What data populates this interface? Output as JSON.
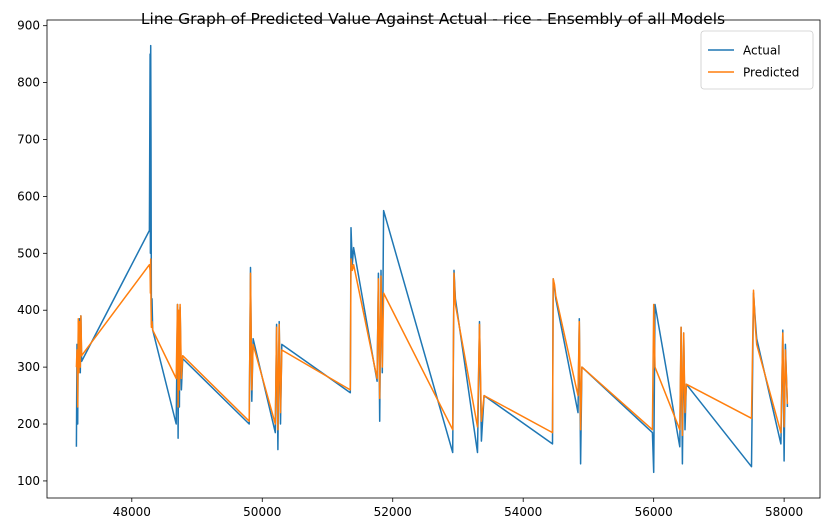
{
  "chart_data": {
    "type": "line",
    "title": "Line Graph of Predicted Value Against Actual - rice  - Ensembly of all Models",
    "xlabel": "",
    "ylabel": "",
    "xlim": [
      46700,
      58550
    ],
    "ylim": [
      70,
      910
    ],
    "x_ticks": [
      48000,
      50000,
      52000,
      54000,
      56000,
      58000
    ],
    "y_ticks": [
      100,
      200,
      300,
      400,
      500,
      600,
      700,
      800,
      900
    ],
    "grid": false,
    "legend_position": "top-right",
    "series": [
      {
        "name": "Actual",
        "color": "#1f77b4",
        "x": [
          47150,
          47160,
          47170,
          47180,
          47190,
          47200,
          47210,
          47220,
          47230,
          48270,
          48280,
          48285,
          48290,
          48295,
          48300,
          48310,
          48320,
          48680,
          48700,
          48710,
          48720,
          48730,
          48740,
          48760,
          48780,
          49800,
          49820,
          49840,
          49860,
          50200,
          50220,
          50240,
          50260,
          50280,
          50300,
          51350,
          51360,
          51380,
          51400,
          51760,
          51780,
          51800,
          51820,
          51840,
          51860,
          52920,
          52940,
          52960,
          53300,
          53330,
          53360,
          53400,
          54450,
          54460,
          54480,
          54500,
          54840,
          54860,
          54880,
          54900,
          55980,
          56000,
          56020,
          56400,
          56420,
          56440,
          56460,
          56480,
          56500,
          57500,
          57530,
          57560,
          57580,
          57950,
          57980,
          58000,
          58020,
          58050
        ],
        "y": [
          160,
          340,
          200,
          380,
          300,
          385,
          290,
          390,
          310,
          540,
          850,
          500,
          865,
          700,
          375,
          420,
          365,
          200,
          410,
          175,
          395,
          230,
          405,
          260,
          315,
          200,
          475,
          240,
          350,
          185,
          375,
          155,
          380,
          200,
          340,
          255,
          545,
          480,
          510,
          275,
          465,
          205,
          470,
          290,
          575,
          150,
          470,
          420,
          150,
          380,
          170,
          250,
          165,
          455,
          440,
          420,
          220,
          385,
          130,
          300,
          185,
          115,
          410,
          160,
          370,
          130,
          360,
          190,
          270,
          125,
          430,
          380,
          350,
          165,
          365,
          135,
          340,
          230
        ]
      },
      {
        "name": "Predicted",
        "color": "#ff7f0e",
        "x": [
          47150,
          47160,
          47170,
          47180,
          47190,
          47200,
          47210,
          47220,
          47230,
          48270,
          48280,
          48285,
          48290,
          48295,
          48300,
          48310,
          48320,
          48680,
          48700,
          48710,
          48720,
          48730,
          48740,
          48760,
          48780,
          49800,
          49820,
          49840,
          49860,
          50200,
          50220,
          50240,
          50260,
          50280,
          50300,
          51350,
          51360,
          51380,
          51400,
          51760,
          51780,
          51800,
          51820,
          51840,
          51860,
          52920,
          52940,
          52960,
          53300,
          53330,
          53360,
          53400,
          54450,
          54460,
          54480,
          54500,
          54840,
          54860,
          54880,
          54900,
          55980,
          56000,
          56020,
          56400,
          56420,
          56440,
          56460,
          56480,
          56500,
          57500,
          57530,
          57560,
          57580,
          57950,
          57980,
          58000,
          58020,
          58050
        ],
        "y": [
          300,
          330,
          230,
          385,
          290,
          380,
          300,
          390,
          320,
          480,
          470,
          430,
          490,
          410,
          370,
          380,
          365,
          280,
          410,
          230,
          400,
          260,
          410,
          280,
          320,
          205,
          465,
          260,
          340,
          200,
          370,
          190,
          375,
          220,
          330,
          260,
          490,
          470,
          480,
          280,
          455,
          245,
          460,
          300,
          430,
          190,
          465,
          410,
          195,
          375,
          205,
          250,
          185,
          455,
          445,
          425,
          250,
          380,
          190,
          300,
          190,
          410,
          300,
          190,
          370,
          180,
          360,
          220,
          270,
          210,
          435,
          370,
          340,
          185,
          360,
          195,
          330,
          235
        ]
      }
    ]
  }
}
